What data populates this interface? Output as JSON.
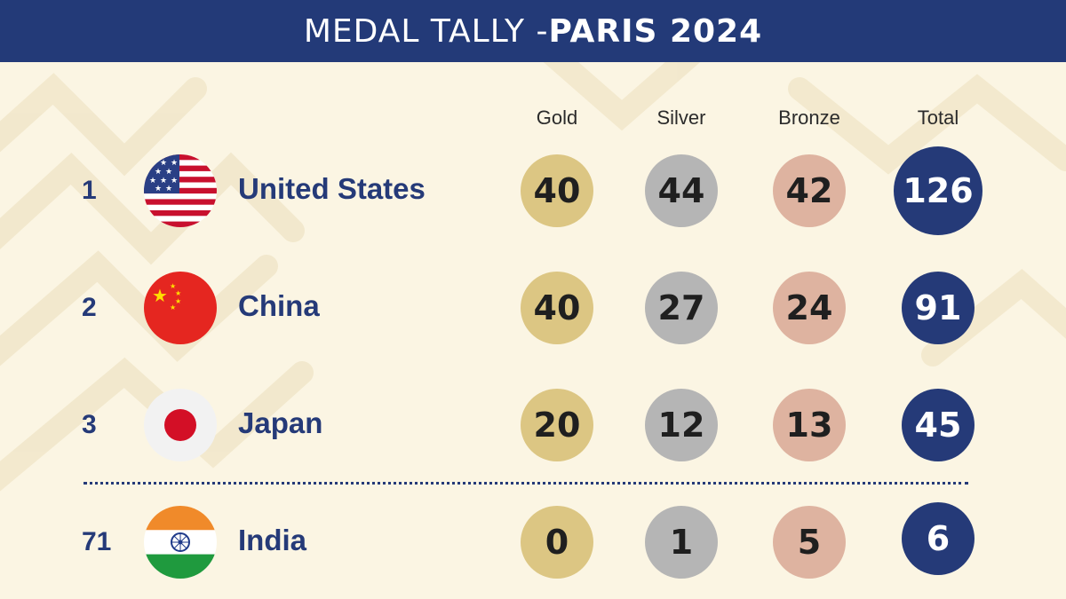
{
  "header": {
    "title_part1": "MEDAL TALLY - ",
    "title_part2": "PARIS 2024"
  },
  "columns": {
    "gold": "Gold",
    "silver": "Silver",
    "bronze": "Bronze",
    "total": "Total"
  },
  "colors": {
    "header_bg": "#233a78",
    "accent_blue": "#253a78",
    "gold": "#dcc683",
    "silver": "#b5b5b5",
    "bronze": "#deb3a0",
    "background": "#fbf5e3"
  },
  "rows": [
    {
      "rank": "1",
      "country": "United States",
      "flag": "usa-flag-icon",
      "gold": "40",
      "silver": "44",
      "bronze": "42",
      "total": "126"
    },
    {
      "rank": "2",
      "country": "China",
      "flag": "china-flag-icon",
      "gold": "40",
      "silver": "27",
      "bronze": "24",
      "total": "91"
    },
    {
      "rank": "3",
      "country": "Japan",
      "flag": "japan-flag-icon",
      "gold": "20",
      "silver": "12",
      "bronze": "13",
      "total": "45"
    },
    {
      "rank": "71",
      "country": "India",
      "flag": "india-flag-icon",
      "gold": "0",
      "silver": "1",
      "bronze": "5",
      "total": "6"
    }
  ],
  "chart_data": {
    "type": "table",
    "title": "MEDAL TALLY - PARIS 2024",
    "columns": [
      "Gold",
      "Silver",
      "Bronze",
      "Total"
    ],
    "categories": [
      "United States",
      "China",
      "Japan",
      "India"
    ],
    "ranks": [
      1,
      2,
      3,
      71
    ],
    "series": [
      {
        "name": "Gold",
        "values": [
          40,
          40,
          20,
          0
        ]
      },
      {
        "name": "Silver",
        "values": [
          44,
          27,
          12,
          1
        ]
      },
      {
        "name": "Bronze",
        "values": [
          42,
          24,
          13,
          5
        ]
      },
      {
        "name": "Total",
        "values": [
          126,
          91,
          45,
          6
        ]
      }
    ]
  }
}
